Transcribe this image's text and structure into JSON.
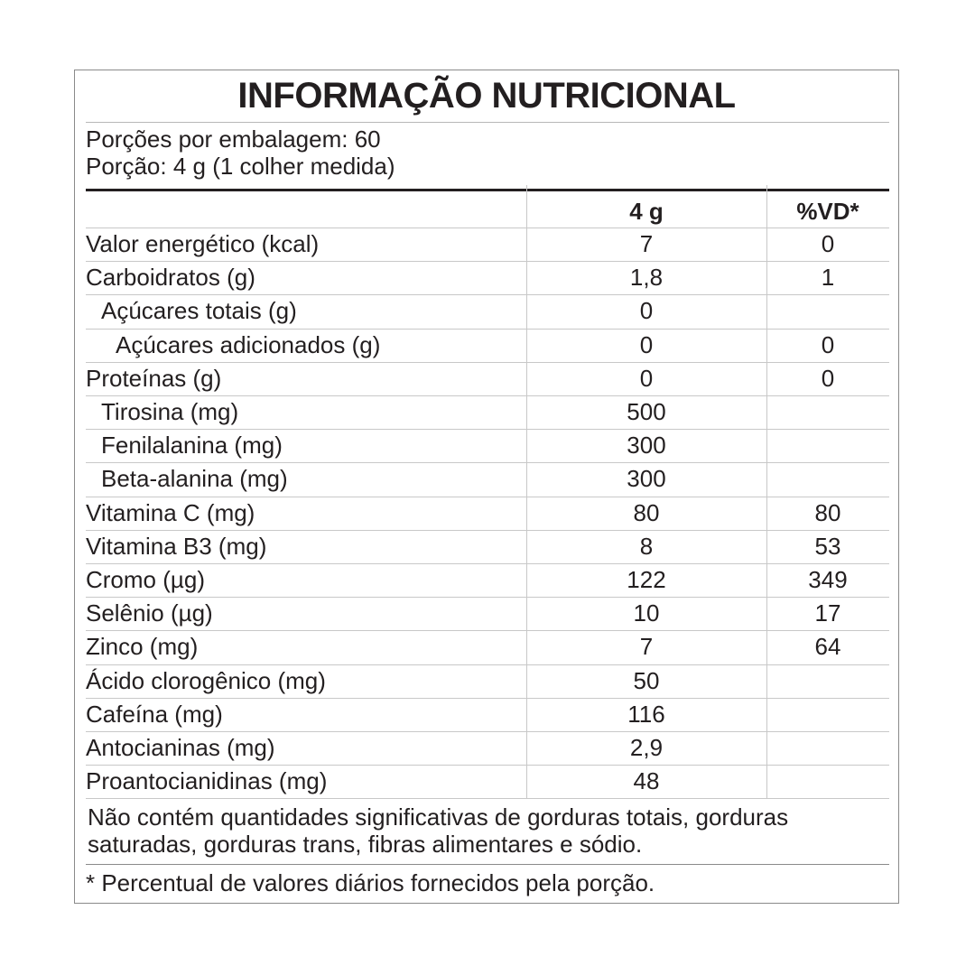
{
  "title": "INFORMAÇÃO NUTRICIONAL",
  "servings_per_package": "Porções por embalagem: 60",
  "serving_size": "Porção: 4 g (1 colher medida)",
  "columns": [
    "4 g",
    "%VD*"
  ],
  "rows": [
    {
      "label": "Valor energético (kcal)",
      "level": 0,
      "amount": "7",
      "dv": "0"
    },
    {
      "label": "Carboidratos (g)",
      "level": 0,
      "amount": "1,8",
      "dv": "1"
    },
    {
      "label": "Açúcares totais (g)",
      "level": 1,
      "amount": "0",
      "dv": ""
    },
    {
      "label": "Açúcares adicionados (g)",
      "level": 2,
      "amount": "0",
      "dv": "0"
    },
    {
      "label": "Proteínas (g)",
      "level": 0,
      "amount": "0",
      "dv": "0"
    },
    {
      "label": "Tirosina (mg)",
      "level": 1,
      "amount": "500",
      "dv": ""
    },
    {
      "label": "Fenilalanina (mg)",
      "level": 1,
      "amount": "300",
      "dv": ""
    },
    {
      "label": "Beta-alanina (mg)",
      "level": 1,
      "amount": "300",
      "dv": ""
    },
    {
      "label": "Vitamina C (mg)",
      "level": 0,
      "amount": "80",
      "dv": "80"
    },
    {
      "label": "Vitamina B3 (mg)",
      "level": 0,
      "amount": "8",
      "dv": "53"
    },
    {
      "label": "Cromo (µg)",
      "level": 0,
      "amount": "122",
      "dv": "349"
    },
    {
      "label": "Selênio (µg)",
      "level": 0,
      "amount": "10",
      "dv": "17"
    },
    {
      "label": "Zinco (mg)",
      "level": 0,
      "amount": "7",
      "dv": "64"
    },
    {
      "label": "Ácido clorogênico (mg)",
      "level": 0,
      "amount": "50",
      "dv": ""
    },
    {
      "label": "Cafeína (mg)",
      "level": 0,
      "amount": "116",
      "dv": ""
    },
    {
      "label": "Antocianinas (mg)",
      "level": 0,
      "amount": "2,9",
      "dv": ""
    },
    {
      "label": "Proantocianidinas (mg)",
      "level": 0,
      "amount": "48",
      "dv": ""
    }
  ],
  "note_line1": "Não contém quantidades significativas de gorduras totais, gorduras",
  "note_line2": "saturadas, gorduras trans, fibras alimentares e sódio.",
  "footnote": "* Percentual de valores diários fornecidos pela porção."
}
